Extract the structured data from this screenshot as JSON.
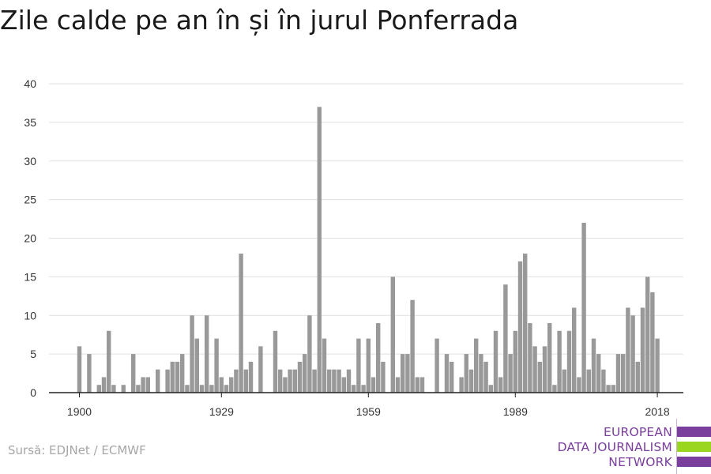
{
  "chart_data": {
    "type": "bar",
    "title": "Zile calde pe an în și în jurul Ponferrada",
    "x": [
      1900,
      1901,
      1902,
      1903,
      1904,
      1905,
      1906,
      1907,
      1908,
      1909,
      1910,
      1911,
      1912,
      1913,
      1914,
      1915,
      1916,
      1917,
      1918,
      1919,
      1920,
      1921,
      1922,
      1923,
      1924,
      1925,
      1926,
      1927,
      1928,
      1929,
      1930,
      1931,
      1932,
      1933,
      1934,
      1935,
      1936,
      1937,
      1938,
      1939,
      1940,
      1941,
      1942,
      1943,
      1944,
      1945,
      1946,
      1947,
      1948,
      1949,
      1950,
      1951,
      1952,
      1953,
      1954,
      1955,
      1956,
      1957,
      1958,
      1959,
      1960,
      1961,
      1962,
      1963,
      1964,
      1965,
      1966,
      1967,
      1968,
      1969,
      1970,
      1971,
      1972,
      1973,
      1974,
      1975,
      1976,
      1977,
      1978,
      1979,
      1980,
      1981,
      1982,
      1983,
      1984,
      1985,
      1986,
      1987,
      1988,
      1989,
      1990,
      1991,
      1992,
      1993,
      1994,
      1995,
      1996,
      1997,
      1998,
      1999,
      2000,
      2001,
      2002,
      2003,
      2004,
      2005,
      2006,
      2007,
      2008,
      2009,
      2010,
      2011,
      2012,
      2013,
      2014,
      2015,
      2016,
      2017,
      2018
    ],
    "values": [
      6,
      0,
      5,
      0,
      1,
      2,
      8,
      1,
      0,
      1,
      0,
      5,
      1,
      2,
      2,
      0,
      3,
      0,
      3,
      4,
      4,
      5,
      1,
      10,
      7,
      1,
      10,
      1,
      7,
      2,
      1,
      2,
      3,
      18,
      3,
      4,
      0,
      6,
      0,
      0,
      8,
      3,
      2,
      3,
      3,
      4,
      5,
      10,
      3,
      37,
      7,
      3,
      3,
      3,
      2,
      3,
      1,
      7,
      1,
      7,
      2,
      9,
      4,
      0,
      15,
      2,
      5,
      5,
      12,
      2,
      2,
      0,
      0,
      7,
      0,
      5,
      4,
      0,
      2,
      5,
      3,
      7,
      5,
      4,
      1,
      8,
      2,
      14,
      5,
      8,
      17,
      18,
      9,
      6,
      4,
      6,
      9,
      1,
      8,
      3,
      8,
      11,
      2,
      22,
      3,
      7,
      5,
      3,
      1,
      1,
      5,
      5,
      11,
      10,
      4,
      11,
      15,
      13,
      7
    ],
    "xticks": [
      "1900",
      "1929",
      "1959",
      "1989",
      "2018"
    ],
    "yticks": [
      "0",
      "5",
      "10",
      "15",
      "20",
      "25",
      "30",
      "35",
      "40"
    ],
    "xlim": [
      1900,
      2018
    ],
    "ylim": [
      0,
      40
    ],
    "xlabel": "",
    "ylabel": "",
    "grid": true,
    "bar_color": "#999999",
    "grid_color": "#e0e0e0"
  },
  "source": "Sursă: EDJNet / ECMWF",
  "logo": {
    "lines": [
      "EUROPEAN",
      "DATA JOURNALISM",
      "NETWORK"
    ],
    "purple": "#7a3e9d",
    "green": "#9ad520"
  }
}
